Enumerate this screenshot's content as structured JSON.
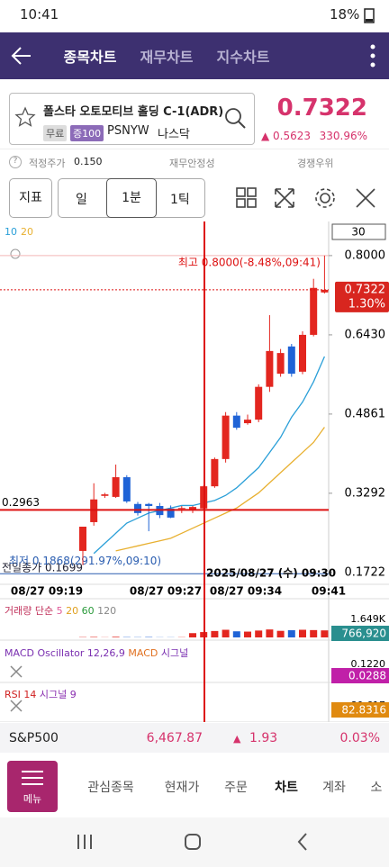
{
  "status_bar": {
    "time": "10:41",
    "battery": "18%"
  },
  "header": {
    "tabs": [
      "종목차트",
      "재무차트",
      "지수차트"
    ]
  },
  "stock": {
    "name": "폴스타 오토모티브 홀딩 C-1(ADR)",
    "tags": [
      "무료",
      "증100"
    ],
    "ticker": "PSNYW",
    "exchange": "나스닥",
    "price": "0.7322",
    "change": "0.5623",
    "change_pct": "330.96%"
  },
  "info_row": {
    "fair_price_label": "적정주가",
    "fair_price": "0.150",
    "items": [
      "재무안정성",
      "경쟁우위"
    ]
  },
  "toolbar": {
    "buttons": [
      "지표",
      "일",
      "1분",
      "1틱"
    ]
  },
  "chart_data": {
    "type": "candlestick",
    "ylim": [
      0.156,
      0.864
    ],
    "yticks": [
      {
        "value": 0.8,
        "label": "0.8000"
      },
      {
        "value": 0.643,
        "label": "0.6430"
      },
      0.4861,
      0.3292,
      0.1722
    ],
    "period_box": "30",
    "x_labels": [
      "08/27 09:19",
      "08/27 09:27",
      "08/27 09:34",
      "09:41"
    ],
    "open": [
      0.215,
      0.272,
      0.324,
      0.322,
      0.361,
      0.308,
      0.308,
      0.304,
      0.299,
      0.299,
      0.295,
      0.299,
      0.343,
      0.397,
      0.483,
      0.468,
      0.475,
      0.54,
      0.566,
      0.62,
      0.57,
      0.643,
      0.727
    ],
    "high": [
      0.263,
      0.349,
      0.33,
      0.386,
      0.365,
      0.312,
      0.31,
      0.31,
      0.305,
      0.304,
      0.304,
      0.345,
      0.4,
      0.49,
      0.49,
      0.485,
      0.545,
      0.682,
      0.615,
      0.625,
      0.65,
      0.754,
      0.8
    ],
    "low": [
      0.1868,
      0.265,
      0.32,
      0.32,
      0.31,
      0.285,
      0.254,
      0.28,
      0.28,
      0.29,
      0.29,
      0.296,
      0.34,
      0.39,
      0.455,
      0.465,
      0.47,
      0.53,
      0.56,
      0.56,
      0.565,
      0.64,
      0.725
    ],
    "close": [
      0.263,
      0.317,
      0.327,
      0.361,
      0.313,
      0.29,
      0.304,
      0.286,
      0.281,
      0.3,
      0.302,
      0.343,
      0.397,
      0.483,
      0.459,
      0.475,
      0.54,
      0.611,
      0.607,
      0.566,
      0.643,
      0.736,
      0.7322
    ],
    "colors": {
      "up": "#e3261f",
      "down": "#1f63d6"
    },
    "series": [
      {
        "name": "10",
        "color": "#2a9fd8",
        "values": [
          null,
          0.21,
          0.23,
          0.25,
          0.27,
          0.28,
          0.29,
          0.295,
          0.3,
          0.305,
          0.305,
          0.31,
          0.315,
          0.325,
          0.34,
          0.36,
          0.38,
          0.41,
          0.44,
          0.48,
          0.51,
          0.55,
          0.6
        ]
      },
      {
        "name": "20",
        "color": "#e8b030",
        "values": [
          null,
          null,
          null,
          0.215,
          0.22,
          0.225,
          0.23,
          0.235,
          0.24,
          0.25,
          0.26,
          0.27,
          0.28,
          0.29,
          0.3,
          0.315,
          0.33,
          0.35,
          0.37,
          0.39,
          0.41,
          0.43,
          0.46
        ]
      }
    ],
    "high_line": {
      "value": 0.8,
      "label": "최고 0.8000(-8.48%,09:41)"
    },
    "low_line": {
      "value": 0.1868,
      "label": "최저 0.1868(291.97%,09:10)"
    },
    "prev_close": {
      "value": 0.1699,
      "label": "전일종가 0.1699"
    },
    "crosshair": {
      "value": 0.2963,
      "time": "2025/08/27 (수) 09:30"
    },
    "last": {
      "value": 0.7322,
      "pct": "1.30%"
    },
    "volume": {
      "title_parts": [
        "거래량 단순",
        "5",
        "20",
        "60",
        "120"
      ],
      "colors": [
        "#c0305a",
        "#e05a9a",
        "#e0a020",
        "#2a9a3a",
        "#888888"
      ],
      "ylim": [
        0,
        1649
      ],
      "yticks": [
        {
          "value": 1649,
          "label": "1.649K"
        }
      ],
      "last_label": "766,920",
      "values": [
        20,
        30,
        10,
        40,
        20,
        15,
        25,
        10,
        10,
        15,
        280,
        350,
        420,
        500,
        400,
        380,
        450,
        520,
        430,
        470,
        500,
        480,
        460
      ]
    },
    "macd": {
      "title_parts": [
        "MACD Oscillator 12,26,9",
        "MACD",
        "시그널"
      ],
      "colors": [
        "#7a2fb0",
        "#e07020",
        "#7a2fb0"
      ],
      "tick": "0.1220",
      "last_label": "0.0288"
    },
    "rsi": {
      "title_parts": [
        "RSI 14",
        "시그널 9"
      ],
      "colors": [
        "#d02020",
        "#8a2fb0"
      ],
      "tick": "80.617",
      "last_label": "82.8316"
    }
  },
  "market": {
    "name": "S&P500",
    "value": "6,467.87",
    "change": "1.93",
    "change_pct": "0.03%"
  },
  "bottom_nav": {
    "menu": "메뉴",
    "items": [
      "관심종목",
      "현재가",
      "주문",
      "차트",
      "계좌",
      "소"
    ]
  }
}
